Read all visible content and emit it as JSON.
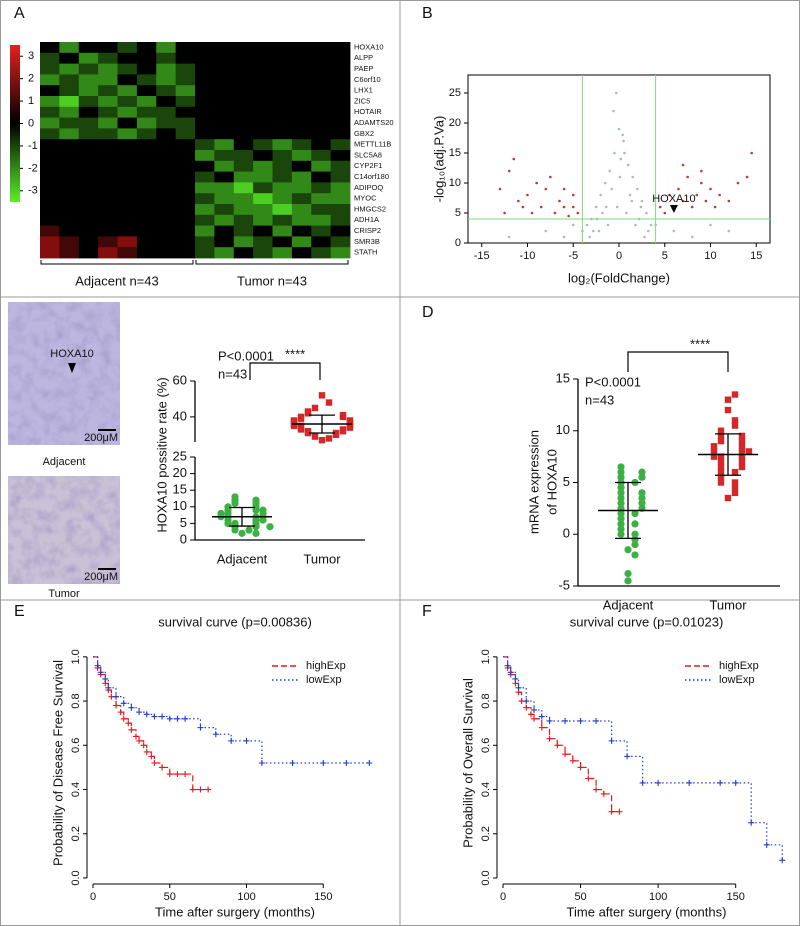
{
  "chart_data": [
    {
      "type": "heatmap",
      "panel": "A",
      "rows": [
        "HOXA10",
        "ALPP",
        "PAEP",
        "C6orf10",
        "LHX1",
        "ZIC5",
        "HOTAIR",
        "ADAMTS20",
        "GBX2",
        "METTL11B",
        "SLC5A8",
        "CYP2F1",
        "C14orf180",
        "ADIPOQ",
        "MYOC",
        "HMGCS2",
        "ADH1A",
        "CRISP2",
        "SMR3B",
        "STATH"
      ],
      "values": [
        [
          0,
          -2,
          0,
          0,
          -1,
          0,
          -2,
          0,
          0,
          0,
          0,
          0,
          0,
          0,
          0,
          0
        ],
        [
          -1,
          0,
          -2,
          -1,
          0,
          0,
          -1,
          0,
          0,
          0,
          0,
          0,
          0,
          0,
          0,
          0
        ],
        [
          -1,
          -2,
          -1,
          -2,
          -1,
          0,
          -2,
          -1,
          0,
          0,
          0,
          0,
          0,
          0,
          0,
          0
        ],
        [
          -2,
          -1,
          -2,
          -2,
          0,
          -1,
          -2,
          -1,
          0,
          0,
          0,
          0,
          0,
          0,
          0,
          0
        ],
        [
          0,
          -1,
          -2,
          -1,
          -2,
          0,
          -1,
          -2,
          0,
          0,
          0,
          0,
          0,
          0,
          0,
          0
        ],
        [
          -2,
          -3,
          -1,
          -2,
          -1,
          -2,
          0,
          -1,
          0,
          0,
          0,
          0,
          0,
          0,
          0,
          0
        ],
        [
          -1,
          -2,
          0,
          -1,
          -2,
          -1,
          -1,
          0,
          0,
          0,
          0,
          0,
          0,
          0,
          0,
          0
        ],
        [
          -2,
          -1,
          -1,
          -2,
          0,
          -2,
          -1,
          -1,
          0,
          0,
          0,
          0,
          0,
          0,
          0,
          0
        ],
        [
          -1,
          -2,
          -1,
          -1,
          -2,
          -1,
          0,
          -1,
          0,
          0,
          0,
          0,
          0,
          0,
          0,
          0
        ],
        [
          0,
          0,
          0,
          0,
          0,
          0,
          0,
          0,
          -1,
          -2,
          0,
          -1,
          -2,
          -1,
          0,
          -1
        ],
        [
          0,
          0,
          0,
          0,
          0,
          0,
          0,
          0,
          -2,
          -1,
          -1,
          0,
          -1,
          -2,
          -1,
          0
        ],
        [
          0,
          0,
          0,
          0,
          0,
          0,
          0,
          0,
          0,
          -2,
          -1,
          -2,
          -1,
          0,
          -2,
          -1
        ],
        [
          0,
          0,
          0,
          0,
          0,
          0,
          0,
          0,
          -1,
          0,
          -2,
          -2,
          -1,
          -2,
          0,
          -1
        ],
        [
          0,
          0,
          0,
          0,
          0,
          0,
          0,
          0,
          -2,
          -2,
          -3,
          -1,
          -2,
          -2,
          -1,
          -2
        ],
        [
          0,
          0,
          0,
          0,
          0,
          0,
          0,
          0,
          -1,
          -2,
          -2,
          -3,
          -2,
          -1,
          -2,
          -2
        ],
        [
          0,
          0,
          0,
          0,
          0,
          0,
          0,
          0,
          -2,
          -1,
          -2,
          -2,
          -3,
          -2,
          -1,
          -1
        ],
        [
          0,
          0,
          0,
          0,
          0,
          0,
          0,
          0,
          -1,
          -2,
          -1,
          -2,
          -1,
          -2,
          -2,
          -1
        ],
        [
          1,
          0,
          0,
          0,
          0,
          0,
          0,
          0,
          -2,
          0,
          -1,
          0,
          -2,
          0,
          -1,
          0
        ],
        [
          2,
          1,
          0,
          1,
          2,
          0,
          0,
          0,
          -1,
          0,
          -2,
          -1,
          0,
          -2,
          0,
          -1
        ],
        [
          2,
          1,
          0,
          2,
          1,
          0,
          0,
          0,
          -1,
          -2,
          0,
          -1,
          -2,
          0,
          -1,
          -2
        ]
      ],
      "clim": [
        -3.5,
        3.5
      ],
      "colorbar_ticks": [
        3,
        2,
        1,
        0,
        -1,
        -2,
        -3
      ],
      "group_labels": [
        "Adjacent n=43",
        "Tumor n=43"
      ],
      "highlight": {
        "row": 0,
        "color": "#e02020"
      }
    },
    {
      "type": "scatter",
      "panel": "B",
      "xlabel": "log₂(FoldChange)",
      "ylabel": "-log₁₀(adj.P.Va)",
      "xlim": [
        -16.5,
        16.5
      ],
      "ylim": [
        0,
        28
      ],
      "xticks": [
        -15,
        -10,
        -5,
        0,
        5,
        10,
        15
      ],
      "yticks": [
        0,
        5,
        10,
        15,
        20,
        25
      ],
      "vlines": [
        -4,
        4
      ],
      "hline": 4,
      "threshold_color": "#7fd87f",
      "series": [
        {
          "color": "#a9bcbc",
          "x": [
            -3.5,
            -3,
            -2.5,
            -2,
            -1.5,
            -1,
            -0.5,
            0,
            0.5,
            1,
            1.5,
            2,
            2.5,
            3,
            3.5,
            -2.8,
            -1.8,
            -0.8,
            0.2,
            1.2,
            2.2,
            3.2,
            -3.2,
            -2.2,
            -1.2,
            -0.2,
            0.8,
            1.8,
            2.8,
            -0.6,
            0.4,
            1.4,
            -1.4,
            -2.4,
            2.4,
            -4,
            4,
            0.1,
            -0.3,
            0.6,
            -8,
            -6,
            -5,
            6,
            8,
            10,
            -12,
            12
          ],
          "values": [
            3,
            4,
            6,
            8,
            10,
            12,
            15,
            19,
            17,
            13,
            11,
            9,
            7,
            5,
            3,
            2,
            5,
            9,
            14,
            8,
            4,
            2,
            1,
            2,
            3,
            6,
            5,
            3,
            1,
            22,
            18,
            7,
            6,
            4,
            6,
            2,
            3,
            11,
            25,
            15,
            2,
            1,
            3,
            2,
            1,
            3,
            1,
            2
          ]
        },
        {
          "color": "#c0392b",
          "x": [
            -13,
            -12,
            -11,
            -10,
            -9.5,
            -9,
            -8.5,
            -8,
            -7,
            -6.5,
            -6,
            -5.5,
            -5,
            -4.5,
            -11.5,
            -10.5,
            -7.5,
            -6,
            -5,
            -12.5,
            5,
            5.5,
            6,
            6.5,
            7,
            7.5,
            8,
            8.5,
            9,
            9.5,
            10,
            10.5,
            11,
            12,
            13,
            14,
            14.5,
            4.5,
            7,
            9
          ],
          "values": [
            9,
            12,
            7,
            8,
            5,
            10,
            6,
            9,
            5,
            7,
            6,
            4.5,
            8,
            5,
            14,
            6,
            11,
            9,
            6,
            5,
            5,
            8,
            6,
            9,
            7,
            11,
            6,
            8,
            10,
            7,
            9,
            6,
            8,
            7,
            10,
            11,
            15,
            6,
            13,
            12
          ]
        }
      ],
      "annotation": {
        "text": "HOXA10",
        "x": 6,
        "y": 5,
        "color": "#c0392b"
      }
    },
    {
      "type": "dotplot",
      "panel": "C",
      "images": [
        {
          "caption": "Adjacent",
          "marker": "HOXA10",
          "scale": "200μM"
        },
        {
          "caption": "Tumor",
          "scale": "200μM"
        }
      ],
      "ylabel": "HOXA10 possitive rate (%)",
      "categories": [
        "Adjacent",
        "Tumor"
      ],
      "colors": [
        "#3cb043",
        "#d62728"
      ],
      "markers": [
        "circle",
        "square"
      ],
      "ylim": [
        0,
        25
      ],
      "yticks": [
        0,
        5,
        10,
        15,
        20,
        25
      ],
      "ylim_upper": [
        26,
        60
      ],
      "yticks_upper": [
        40,
        60
      ],
      "values": [
        [
          2,
          3,
          3,
          4,
          4,
          5,
          5,
          5,
          6,
          6,
          6,
          7,
          7,
          7,
          7,
          8,
          8,
          8,
          9,
          9,
          9,
          10,
          10,
          11,
          11,
          12,
          12,
          13,
          2,
          4
        ],
        [
          27,
          28,
          29,
          30,
          31,
          31,
          32,
          32,
          33,
          33,
          34,
          34,
          35,
          35,
          35,
          36,
          36,
          37,
          37,
          38,
          38,
          39,
          40,
          40,
          41,
          42,
          43,
          45,
          48,
          52
        ]
      ],
      "mean": [
        7,
        36
      ],
      "sd": [
        2.8,
        5
      ],
      "p_text": "P<0.0001",
      "n_text": "n=43",
      "significance": "****"
    },
    {
      "type": "dotplot",
      "panel": "D",
      "ylabel": [
        "mRNA expression",
        "of HOXA10"
      ],
      "categories": [
        "Adjacent",
        "Tumor"
      ],
      "colors": [
        "#3cb043",
        "#d62728"
      ],
      "markers": [
        "circle",
        "square"
      ],
      "ylim": [
        -5,
        15
      ],
      "yticks": [
        -5,
        0,
        5,
        10,
        15
      ],
      "values": [
        [
          -4.5,
          -3.8,
          -1.5,
          -1,
          -0.5,
          0,
          0,
          0.5,
          1,
          1,
          1.5,
          2,
          2,
          2.5,
          2.5,
          3,
          3,
          3.5,
          3.5,
          4,
          4,
          4.5,
          5,
          5,
          5.5,
          5.5,
          6,
          6,
          6.5,
          -2
        ],
        [
          3.5,
          4,
          4.5,
          5,
          5,
          5.5,
          6,
          6,
          6.5,
          6.5,
          7,
          7,
          7.5,
          7.5,
          7.5,
          8,
          8,
          8,
          8.5,
          8.5,
          9,
          9,
          9.5,
          9.5,
          10,
          10.5,
          11,
          12,
          13,
          13.5
        ]
      ],
      "mean": [
        2.3,
        7.7
      ],
      "sd": [
        2.7,
        2.0
      ],
      "p_text": "P<0.0001",
      "n_text": "n=43",
      "significance": "****"
    },
    {
      "type": "line",
      "panel": "E",
      "step": true,
      "legend": "top right",
      "title": "survival curve (p=0.00836)",
      "xlabel": "Time after surgery (months)",
      "ylabel": "Probability of Disease Free Survival",
      "xlim": [
        0,
        185
      ],
      "ylim": [
        0,
        1.04
      ],
      "xticks": [
        0,
        50,
        100,
        150
      ],
      "yticks": [
        {
          "value": 0,
          "label": "0.0"
        },
        0.2,
        0.4,
        0.6,
        0.8,
        {
          "value": 1,
          "label": "1.0"
        }
      ],
      "series": [
        {
          "name": "highExp",
          "color": "#e31a1c",
          "linestyle": "dashed",
          "x": [
            0,
            3,
            5,
            8,
            10,
            12,
            15,
            18,
            20,
            23,
            25,
            28,
            30,
            33,
            35,
            38,
            40,
            45,
            50,
            55,
            60,
            65,
            70,
            75
          ],
          "values": [
            1.0,
            0.95,
            0.92,
            0.88,
            0.85,
            0.82,
            0.78,
            0.75,
            0.72,
            0.7,
            0.67,
            0.64,
            0.62,
            0.6,
            0.57,
            0.55,
            0.52,
            0.5,
            0.47,
            0.47,
            0.47,
            0.4,
            0.4,
            0.4
          ]
        },
        {
          "name": "lowExp",
          "color": "#1f3fcf",
          "linestyle": "dotted",
          "x": [
            0,
            3,
            5,
            8,
            10,
            15,
            20,
            25,
            30,
            35,
            40,
            45,
            50,
            55,
            60,
            70,
            80,
            90,
            100,
            110,
            130,
            150,
            165,
            180
          ],
          "values": [
            1.0,
            0.96,
            0.93,
            0.9,
            0.86,
            0.82,
            0.79,
            0.77,
            0.75,
            0.74,
            0.73,
            0.73,
            0.72,
            0.72,
            0.72,
            0.68,
            0.65,
            0.62,
            0.62,
            0.52,
            0.52,
            0.52,
            0.52,
            0.52
          ]
        }
      ]
    },
    {
      "type": "line",
      "panel": "F",
      "step": true,
      "legend": "top right",
      "title": "survival curve (p=0.01023)",
      "xlabel": "Time after surgery (months)",
      "ylabel": "Probability of Overall Survival",
      "xlim": [
        0,
        185
      ],
      "ylim": [
        0,
        1.04
      ],
      "xticks": [
        0,
        50,
        100,
        150
      ],
      "yticks": [
        {
          "value": 0,
          "label": "0.0"
        },
        0.2,
        0.4,
        0.6,
        0.8,
        {
          "value": 1,
          "label": "1.0"
        }
      ],
      "series": [
        {
          "name": "highExp",
          "color": "#e31a1c",
          "linestyle": "dashed",
          "x": [
            0,
            3,
            5,
            8,
            10,
            12,
            15,
            18,
            20,
            25,
            30,
            35,
            40,
            45,
            50,
            55,
            60,
            65,
            70,
            75
          ],
          "values": [
            1,
            0.95,
            0.92,
            0.88,
            0.84,
            0.8,
            0.77,
            0.74,
            0.72,
            0.68,
            0.63,
            0.6,
            0.56,
            0.53,
            0.5,
            0.45,
            0.4,
            0.38,
            0.3,
            0.3
          ]
        },
        {
          "name": "lowExp",
          "color": "#1f3fcf",
          "linestyle": "dotted",
          "x": [
            0,
            3,
            5,
            8,
            10,
            15,
            20,
            25,
            30,
            40,
            50,
            60,
            70,
            80,
            90,
            100,
            120,
            140,
            150,
            160,
            170,
            180
          ],
          "values": [
            1,
            0.96,
            0.93,
            0.9,
            0.86,
            0.8,
            0.76,
            0.73,
            0.71,
            0.71,
            0.71,
            0.71,
            0.62,
            0.55,
            0.43,
            0.43,
            0.43,
            0.43,
            0.43,
            0.25,
            0.15,
            0.08
          ]
        }
      ]
    }
  ]
}
